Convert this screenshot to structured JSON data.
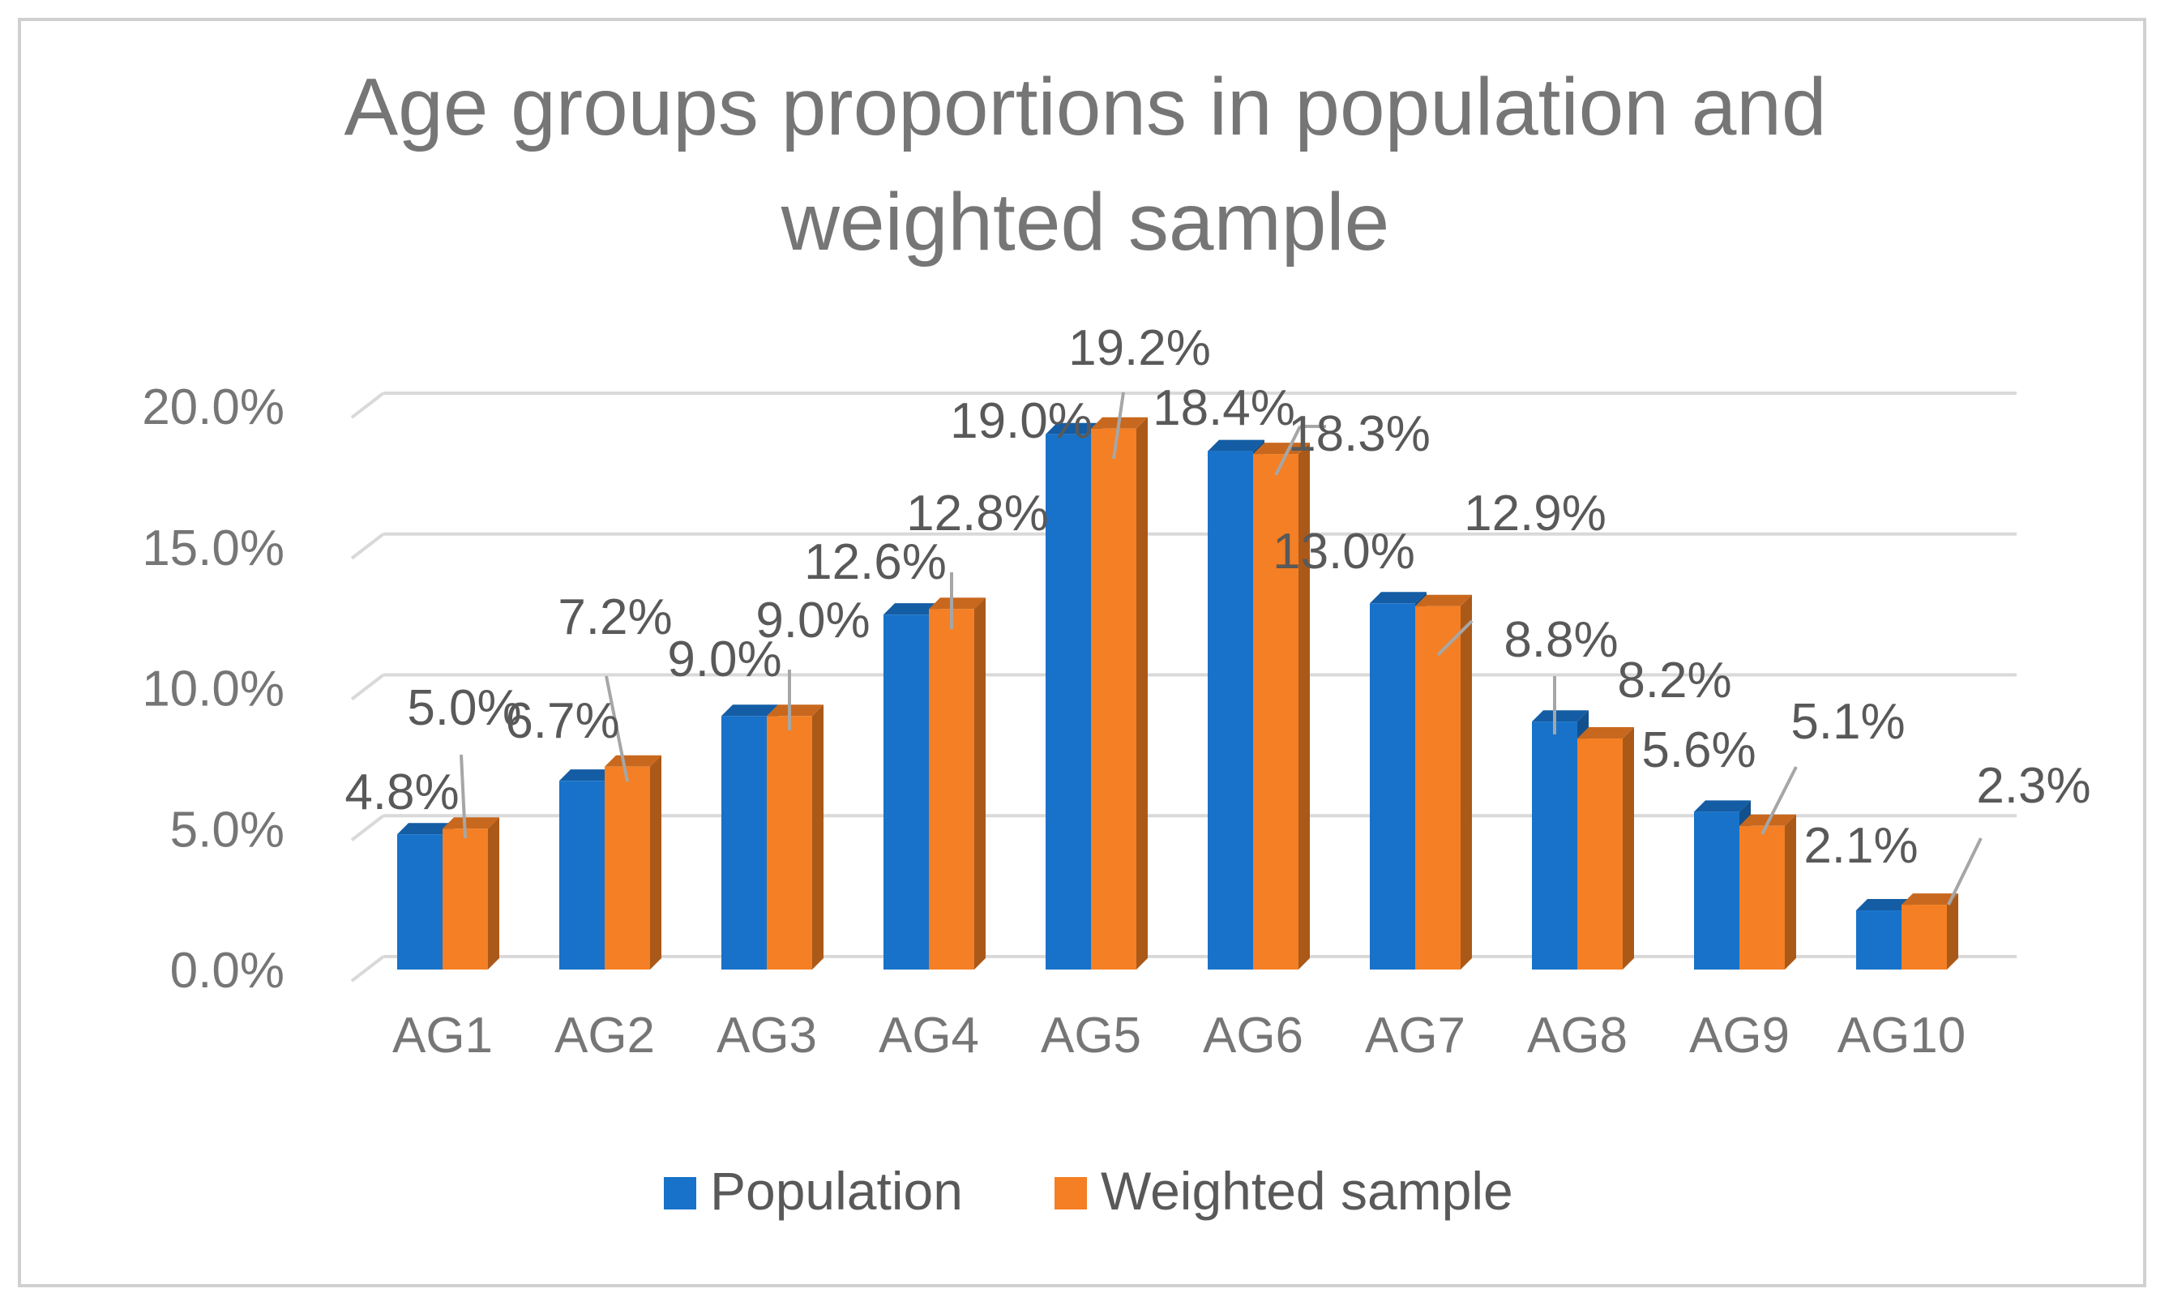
{
  "chart_data": {
    "type": "bar",
    "title_lines": [
      "Age groups proportions in population and",
      "weighted sample"
    ],
    "categories": [
      "AG1",
      "AG2",
      "AG3",
      "AG4",
      "AG5",
      "AG6",
      "AG7",
      "AG8",
      "AG9",
      "AG10"
    ],
    "series": [
      {
        "name": "Population",
        "values": [
          4.8,
          6.7,
          9.0,
          12.6,
          19.0,
          18.4,
          13.0,
          8.8,
          5.6,
          2.1
        ],
        "labels": [
          "4.8%",
          "6.7%",
          "9.0%",
          "12.6%",
          "19.0%",
          "18.4%",
          "13.0%",
          "8.8%",
          "5.6%",
          "2.1%"
        ]
      },
      {
        "name": "Weighted sample",
        "values": [
          5.0,
          7.2,
          9.0,
          12.8,
          19.2,
          18.3,
          12.9,
          8.2,
          5.1,
          2.3
        ],
        "labels": [
          "5.0%",
          "7.2%",
          "9.0%",
          "12.8%",
          "19.2%",
          "18.3%",
          "12.9%",
          "8.2%",
          "5.1%",
          "2.3%"
        ]
      }
    ],
    "y_ticks": [
      "0.0%",
      "5.0%",
      "10.0%",
      "15.0%",
      "20.0%"
    ],
    "ylim": [
      0,
      20
    ],
    "legend_position": "bottom",
    "grid": true,
    "colors": {
      "Population": "#1872c9",
      "Weighted sample": "#f47f24",
      "grid": "#d9d9d9",
      "text": "#767676"
    }
  }
}
